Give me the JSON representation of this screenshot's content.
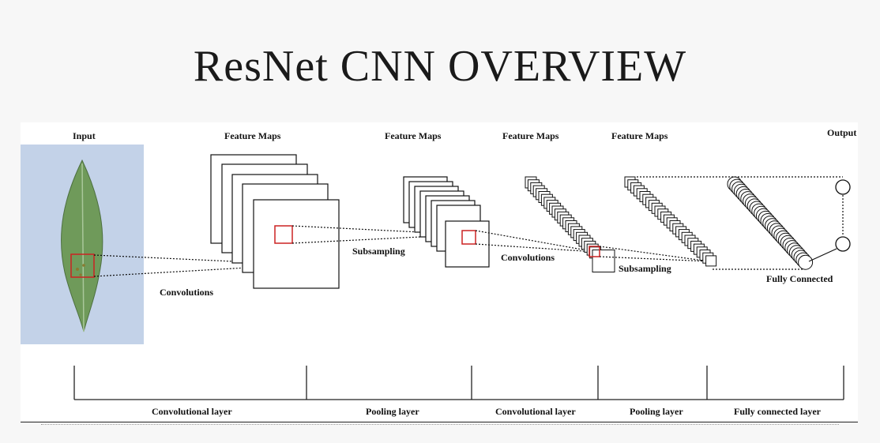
{
  "slide": {
    "title": "ResNet CNN OVERVIEW"
  },
  "diagram": {
    "top_labels": {
      "input": "Input",
      "feature_maps_1": "Feature Maps",
      "feature_maps_2": "Feature Maps",
      "feature_maps_3": "Feature Maps",
      "feature_maps_4": "Feature Maps",
      "output": "Output"
    },
    "ops": {
      "convolutions_1": "Convolutions",
      "subsampling_1": "Subsampling",
      "convolutions_2": "Convolutions",
      "subsampling_2": "Subsampling",
      "fully_connected": "Fully Connected"
    },
    "layers": [
      "Convolutional layer",
      "Pooling layer",
      "Convolutional layer",
      "Pooling layer",
      "Fully connected layer"
    ],
    "colors": {
      "highlight": "#cc2222",
      "leaf_bg": "#c3d2e8",
      "leaf": "#6f9a5a"
    }
  }
}
